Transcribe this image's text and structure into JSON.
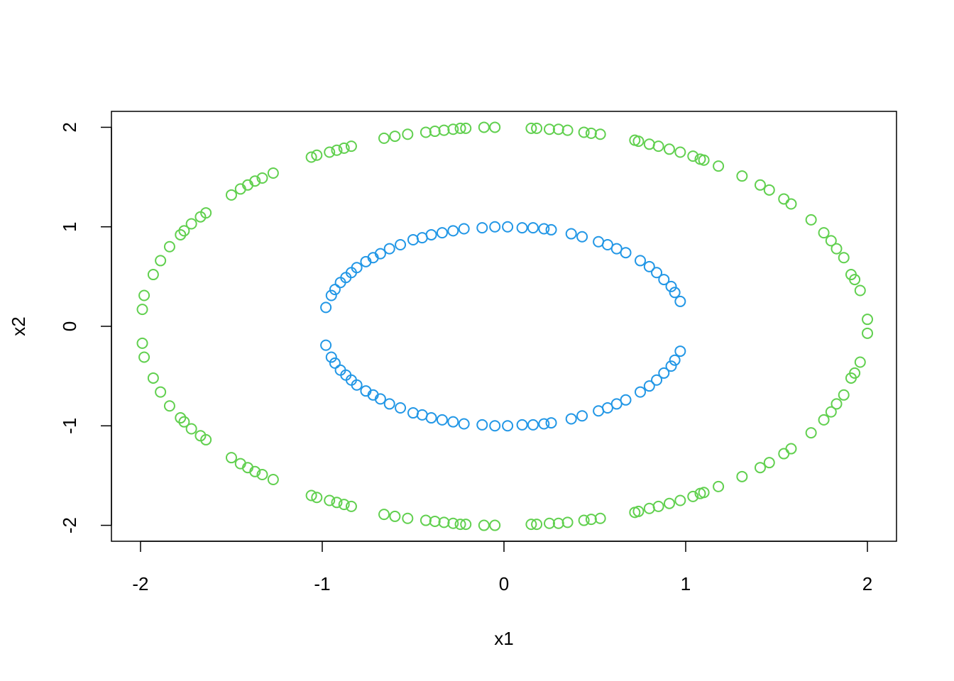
{
  "chart_data": {
    "type": "scatter",
    "xlabel": "x1",
    "ylabel": "x2",
    "xlim": [
      -2.16,
      2.16
    ],
    "ylim": [
      -2.16,
      2.16
    ],
    "xticks": [
      -2,
      -1,
      0,
      1,
      2
    ],
    "yticks": [
      -2,
      -1,
      0,
      1,
      2
    ],
    "series": [
      {
        "color": "#2297E6",
        "x": [
          -0.98,
          -0.95,
          -0.93,
          -0.9,
          -0.87,
          -0.84,
          -0.81,
          -0.76,
          -0.72,
          -0.68,
          -0.63,
          -0.57,
          -0.5,
          -0.45,
          -0.4,
          -0.34,
          -0.28,
          -0.22,
          -0.12,
          -0.05,
          0.02,
          0.1,
          0.16,
          0.22,
          0.26,
          0.37,
          0.43,
          0.52,
          0.57,
          0.62,
          0.67,
          0.75,
          0.8,
          0.84,
          0.88,
          0.92,
          0.94,
          0.97,
          -0.98,
          -0.95,
          -0.93,
          -0.9,
          -0.87,
          -0.84,
          -0.81,
          -0.76,
          -0.72,
          -0.68,
          -0.63,
          -0.57,
          -0.5,
          -0.45,
          -0.4,
          -0.34,
          -0.28,
          -0.22,
          -0.12,
          -0.05,
          0.02,
          0.1,
          0.16,
          0.22,
          0.26,
          0.37,
          0.43,
          0.52,
          0.57,
          0.62,
          0.67,
          0.75,
          0.8,
          0.84,
          0.88,
          0.92,
          0.94,
          0.97
        ],
        "values": [
          0.19,
          0.31,
          0.37,
          0.44,
          0.49,
          0.54,
          0.59,
          0.65,
          0.69,
          0.73,
          0.78,
          0.82,
          0.87,
          0.89,
          0.92,
          0.94,
          0.96,
          0.98,
          0.99,
          1.0,
          1.0,
          0.99,
          0.99,
          0.98,
          0.97,
          0.93,
          0.9,
          0.85,
          0.82,
          0.78,
          0.74,
          0.66,
          0.6,
          0.54,
          0.47,
          0.4,
          0.34,
          0.25,
          -0.19,
          -0.31,
          -0.37,
          -0.44,
          -0.49,
          -0.54,
          -0.59,
          -0.65,
          -0.69,
          -0.73,
          -0.78,
          -0.82,
          -0.87,
          -0.89,
          -0.92,
          -0.94,
          -0.96,
          -0.98,
          -0.99,
          -1.0,
          -1.0,
          -0.99,
          -0.99,
          -0.98,
          -0.97,
          -0.93,
          -0.9,
          -0.85,
          -0.82,
          -0.78,
          -0.74,
          -0.66,
          -0.6,
          -0.54,
          -0.47,
          -0.4,
          -0.34,
          -0.25
        ]
      },
      {
        "color": "#61D04F",
        "x": [
          -1.99,
          -1.98,
          -1.93,
          -1.89,
          -1.84,
          -1.78,
          -1.76,
          -1.72,
          -1.67,
          -1.64,
          -1.5,
          -1.45,
          -1.41,
          -1.37,
          -1.33,
          -1.27,
          -1.06,
          -1.03,
          -0.96,
          -0.92,
          -0.88,
          -0.84,
          -0.66,
          -0.6,
          -0.53,
          -0.43,
          -0.38,
          -0.33,
          -0.28,
          -0.24,
          -0.21,
          -0.11,
          -0.05,
          0.15,
          0.18,
          0.25,
          0.3,
          0.35,
          0.44,
          0.48,
          0.53,
          0.72,
          0.74,
          0.8,
          0.85,
          0.91,
          0.97,
          1.04,
          1.08,
          1.1,
          1.18,
          1.31,
          1.41,
          1.46,
          1.54,
          1.58,
          1.69,
          1.76,
          1.8,
          1.83,
          1.87,
          1.91,
          1.93,
          1.96,
          2.0,
          -1.99,
          -1.98,
          -1.93,
          -1.89,
          -1.84,
          -1.78,
          -1.76,
          -1.72,
          -1.67,
          -1.64,
          -1.5,
          -1.45,
          -1.41,
          -1.37,
          -1.33,
          -1.27,
          -1.06,
          -1.03,
          -0.96,
          -0.92,
          -0.88,
          -0.84,
          -0.66,
          -0.6,
          -0.53,
          -0.43,
          -0.38,
          -0.33,
          -0.28,
          -0.24,
          -0.21,
          -0.11,
          -0.05,
          0.15,
          0.18,
          0.25,
          0.3,
          0.35,
          0.44,
          0.48,
          0.53,
          0.72,
          0.74,
          0.8,
          0.85,
          0.91,
          0.97,
          1.04,
          1.08,
          1.1,
          1.18,
          1.31,
          1.41,
          1.46,
          1.54,
          1.58,
          1.69,
          1.76,
          1.8,
          1.83,
          1.87,
          1.91,
          1.93,
          1.96,
          2.0
        ],
        "values": [
          0.17,
          0.31,
          0.52,
          0.66,
          0.8,
          0.92,
          0.96,
          1.03,
          1.1,
          1.14,
          1.32,
          1.38,
          1.42,
          1.46,
          1.49,
          1.54,
          1.7,
          1.72,
          1.75,
          1.77,
          1.79,
          1.81,
          1.89,
          1.91,
          1.93,
          1.95,
          1.96,
          1.97,
          1.98,
          1.99,
          1.99,
          2.0,
          2.0,
          1.99,
          1.99,
          1.98,
          1.98,
          1.97,
          1.95,
          1.94,
          1.93,
          1.87,
          1.86,
          1.83,
          1.81,
          1.78,
          1.75,
          1.71,
          1.68,
          1.67,
          1.61,
          1.51,
          1.42,
          1.37,
          1.28,
          1.23,
          1.07,
          0.94,
          0.86,
          0.78,
          0.69,
          0.52,
          0.47,
          0.36,
          0.07,
          -0.17,
          -0.31,
          -0.52,
          -0.66,
          -0.8,
          -0.92,
          -0.96,
          -1.03,
          -1.1,
          -1.14,
          -1.32,
          -1.38,
          -1.42,
          -1.46,
          -1.49,
          -1.54,
          -1.7,
          -1.72,
          -1.75,
          -1.77,
          -1.79,
          -1.81,
          -1.89,
          -1.91,
          -1.93,
          -1.95,
          -1.96,
          -1.97,
          -1.98,
          -1.99,
          -1.99,
          -2.0,
          -2.0,
          -1.99,
          -1.99,
          -1.98,
          -1.98,
          -1.97,
          -1.95,
          -1.94,
          -1.93,
          -1.87,
          -1.86,
          -1.83,
          -1.81,
          -1.78,
          -1.75,
          -1.71,
          -1.68,
          -1.67,
          -1.61,
          -1.51,
          -1.42,
          -1.37,
          -1.28,
          -1.23,
          -1.07,
          -0.94,
          -0.86,
          -0.78,
          -0.69,
          -0.52,
          -0.47,
          -0.36,
          -0.07
        ]
      }
    ]
  }
}
